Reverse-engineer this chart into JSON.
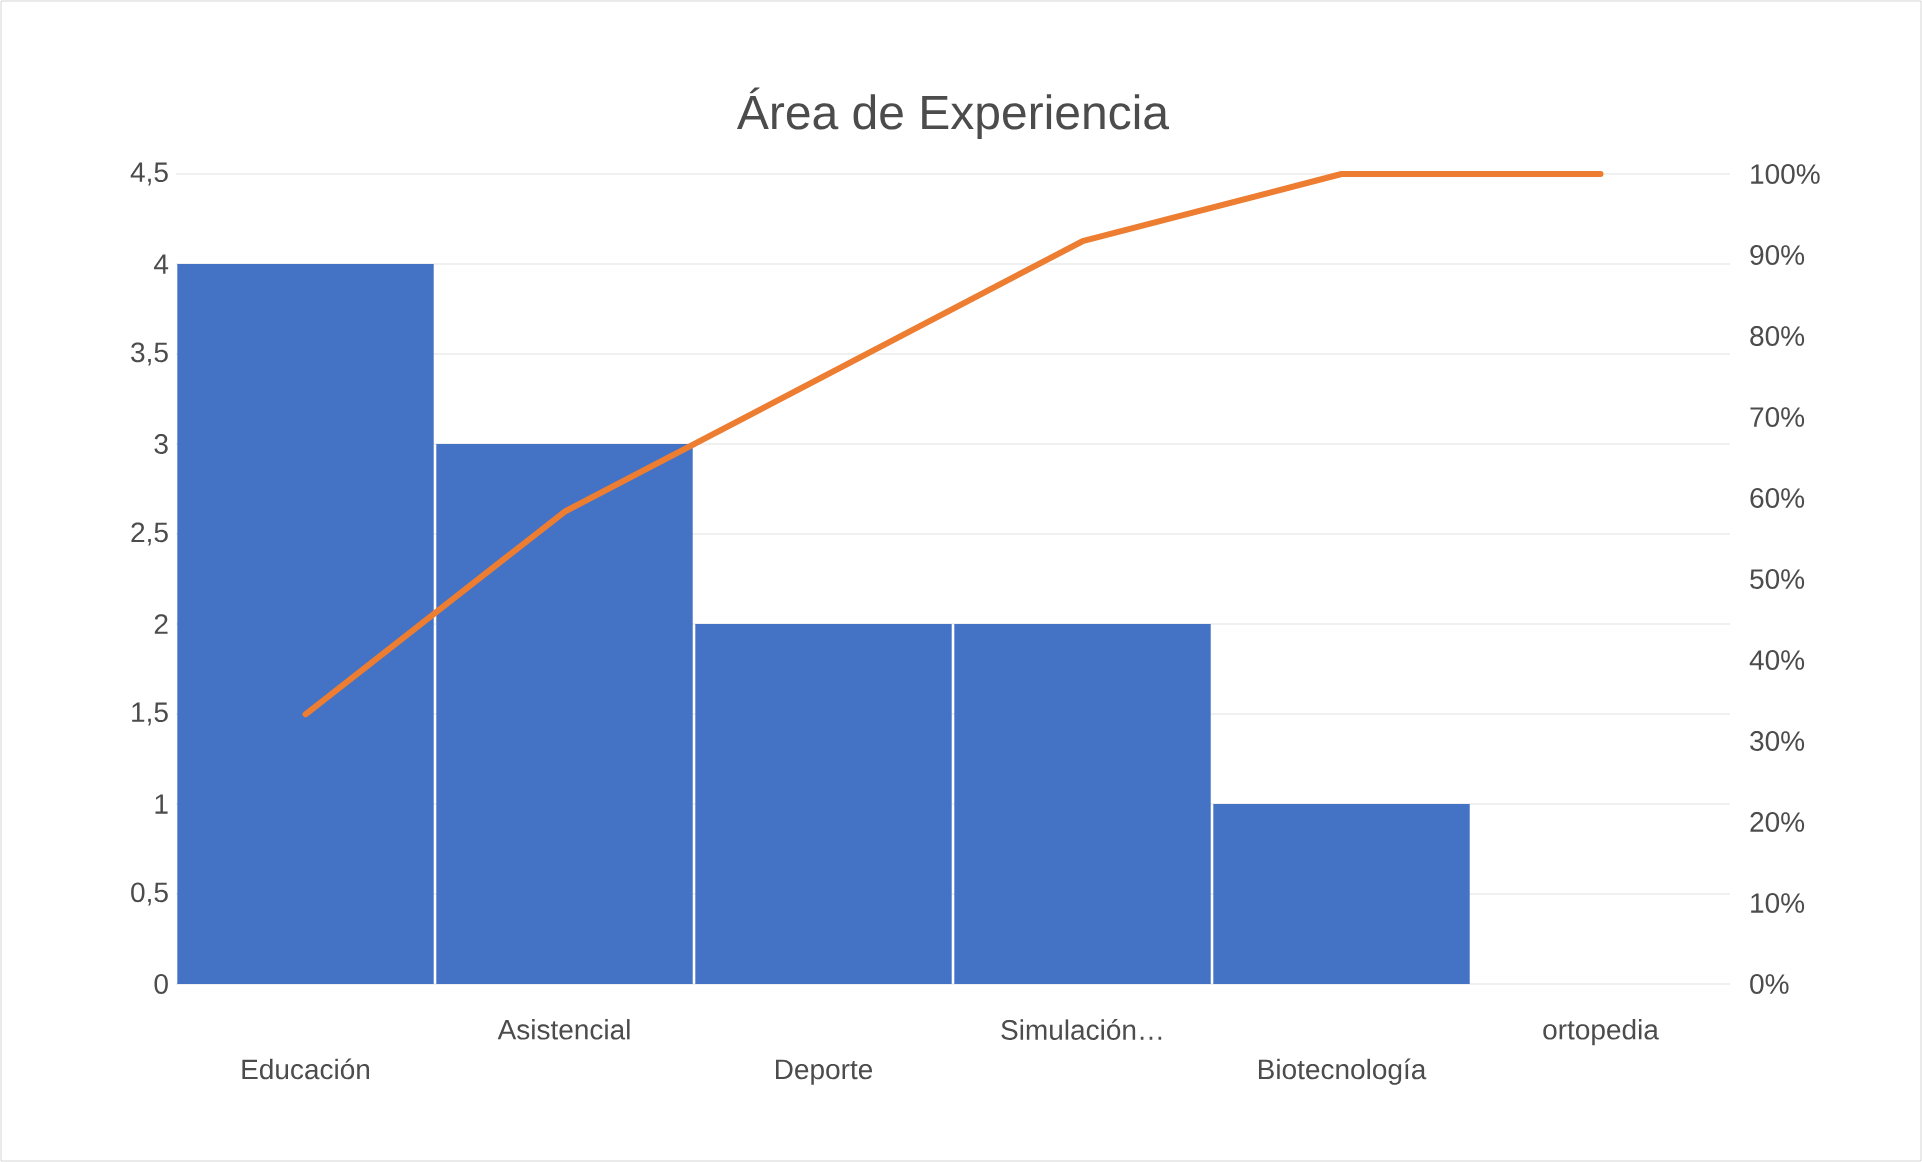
{
  "chart_data": {
    "type": "bar",
    "title": "Área de Experiencia",
    "categories": [
      "Educación",
      "Asistencial",
      "Deporte",
      "Simulación…",
      "Biotecnología",
      "ortopedia"
    ],
    "series": [
      {
        "color": "#4472c4",
        "values": [
          4,
          3,
          2,
          2,
          1,
          0
        ]
      },
      {
        "type": "line",
        "axis": "y2",
        "color": "#ed7d31",
        "values": [
          33.3,
          58.3,
          75,
          91.7,
          100,
          100
        ]
      }
    ],
    "ylim": [
      0,
      4.5
    ],
    "yticks": [
      0,
      {
        "value": 0.5,
        "label": "0,5"
      },
      1,
      {
        "value": 1.5,
        "label": "1,5"
      },
      2,
      {
        "value": 2.5,
        "label": "2,5"
      },
      3,
      {
        "value": 3.5,
        "label": "3,5"
      },
      4,
      {
        "value": 4.5,
        "label": "4,5"
      }
    ],
    "y2lim": [
      0,
      100
    ],
    "y2ticks": [
      {
        "value": 0,
        "label": "0%"
      },
      {
        "value": 10,
        "label": "10%"
      },
      {
        "value": 20,
        "label": "20%"
      },
      {
        "value": 30,
        "label": "30%"
      },
      {
        "value": 40,
        "label": "40%"
      },
      {
        "value": 50,
        "label": "50%"
      },
      {
        "value": 60,
        "label": "60%"
      },
      {
        "value": 70,
        "label": "70%"
      },
      {
        "value": 80,
        "label": "80%"
      },
      {
        "value": 90,
        "label": "90%"
      },
      {
        "value": 100,
        "label": "100%"
      }
    ],
    "grid": "y"
  }
}
